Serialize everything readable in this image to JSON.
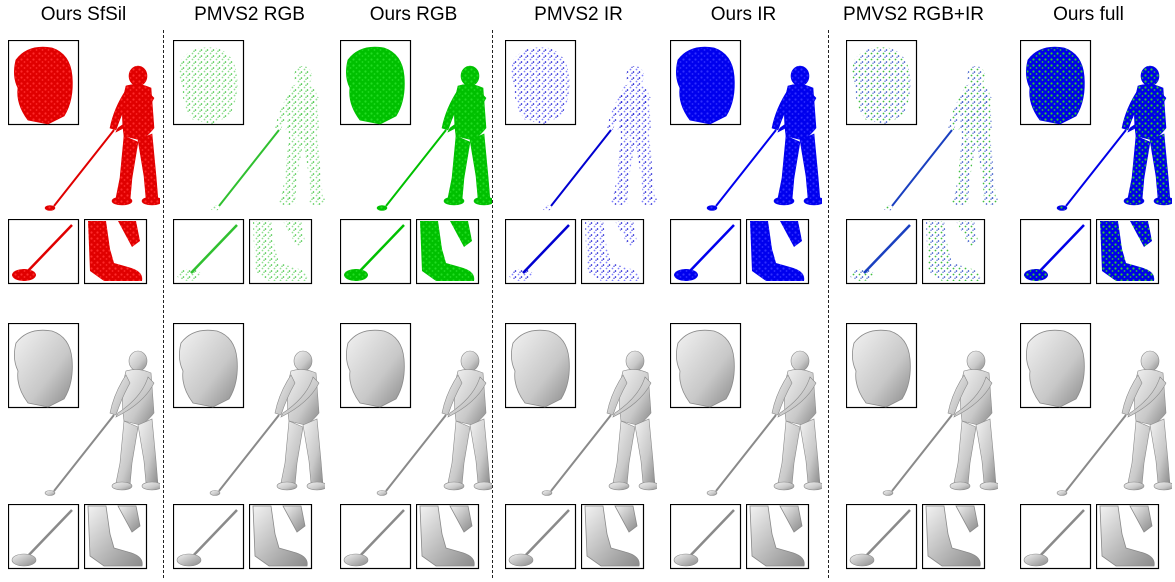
{
  "figure": {
    "columns": [
      {
        "label": "Ours SfSil",
        "color": "#e00000",
        "accent": "#ff2a2a"
      },
      {
        "label": "PMVS2 RGB",
        "color": "#30c030",
        "accent": "#8fe08f"
      },
      {
        "label": "Ours RGB",
        "color": "#00c000",
        "accent": "#22dd22"
      },
      {
        "label": "PMVS2 IR",
        "color": "#0000d0",
        "accent": "#8080ff"
      },
      {
        "label": "Ours IR",
        "color": "#0000ee",
        "accent": "#3030ff"
      },
      {
        "label": "PMVS2 RGB+IR",
        "color": "#1a40c0",
        "accent": "#40c040"
      },
      {
        "label": "Ours full",
        "color": "#0000e8",
        "accent": "#30d030"
      }
    ],
    "mesh_color": "#c8c8c8",
    "mesh_shade": "#8a8a8a",
    "divider_after_columns": [
      0,
      2,
      4
    ],
    "rows": [
      "point-cloud",
      "surface-mesh"
    ]
  }
}
